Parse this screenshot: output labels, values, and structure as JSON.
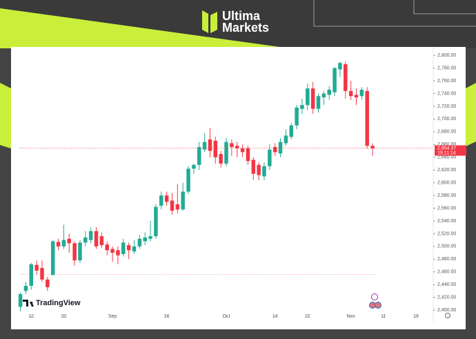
{
  "header": {
    "brand_line1": "Ultima",
    "brand_line2": "Markets"
  },
  "chart_data": {
    "type": "candlestick",
    "open": [
      2405,
      2430,
      2438,
      2471,
      2466,
      2448,
      2455,
      2507,
      2500,
      2512,
      2505,
      2478,
      2506,
      2510,
      2524,
      2516,
      2503,
      2496,
      2494,
      2488,
      2502,
      2492,
      2500,
      2508,
      2512,
      2516,
      2564,
      2580,
      2572,
      2566,
      2558,
      2586,
      2622,
      2628,
      2652,
      2668,
      2666,
      2645,
      2630,
      2662,
      2658,
      2654,
      2654,
      2636,
      2628,
      2610,
      2626,
      2656,
      2646,
      2662,
      2672,
      2690,
      2716,
      2722,
      2748,
      2716,
      2734,
      2738,
      2742,
      2778,
      2786,
      2744,
      2738,
      2736,
      2744,
      2658
    ],
    "high": [
      2428,
      2444,
      2474,
      2478,
      2478,
      2452,
      2510,
      2512,
      2534,
      2520,
      2508,
      2510,
      2524,
      2530,
      2530,
      2522,
      2508,
      2500,
      2500,
      2512,
      2506,
      2510,
      2518,
      2522,
      2540,
      2566,
      2586,
      2586,
      2584,
      2598,
      2600,
      2626,
      2630,
      2664,
      2678,
      2686,
      2672,
      2650,
      2670,
      2668,
      2664,
      2660,
      2658,
      2640,
      2632,
      2632,
      2660,
      2662,
      2670,
      2684,
      2694,
      2722,
      2732,
      2756,
      2758,
      2740,
      2744,
      2752,
      2782,
      2790,
      2790,
      2760,
      2748,
      2750,
      2750,
      2662
    ],
    "low": [
      2398,
      2425,
      2432,
      2456,
      2444,
      2430,
      2455,
      2494,
      2496,
      2490,
      2470,
      2474,
      2500,
      2505,
      2496,
      2498,
      2486,
      2476,
      2472,
      2484,
      2480,
      2488,
      2496,
      2502,
      2508,
      2512,
      2558,
      2564,
      2550,
      2552,
      2556,
      2582,
      2614,
      2620,
      2648,
      2640,
      2630,
      2624,
      2626,
      2642,
      2640,
      2640,
      2628,
      2604,
      2604,
      2604,
      2620,
      2642,
      2640,
      2658,
      2668,
      2684,
      2708,
      2714,
      2708,
      2710,
      2722,
      2730,
      2736,
      2766,
      2732,
      2730,
      2722,
      2730,
      2654,
      2642
    ],
    "close": [
      2425,
      2438,
      2472,
      2462,
      2448,
      2436,
      2508,
      2500,
      2510,
      2505,
      2478,
      2506,
      2514,
      2524,
      2500,
      2502,
      2494,
      2490,
      2486,
      2506,
      2494,
      2500,
      2512,
      2514,
      2516,
      2562,
      2580,
      2570,
      2556,
      2558,
      2586,
      2622,
      2628,
      2656,
      2664,
      2650,
      2640,
      2630,
      2664,
      2656,
      2654,
      2648,
      2634,
      2614,
      2612,
      2626,
      2652,
      2648,
      2664,
      2674,
      2690,
      2718,
      2722,
      2748,
      2716,
      2736,
      2740,
      2746,
      2780,
      2788,
      2744,
      2736,
      2734,
      2746,
      2658,
      2654
    ],
    "up_color": "#22ab94",
    "down_color": "#f23645",
    "xlim": [
      -1.22,
      76.2
    ],
    "xticks": [
      {
        "value": 2,
        "label": "12"
      },
      {
        "value": 8,
        "label": "20"
      },
      {
        "value": 17,
        "label": "Sep"
      },
      {
        "value": 27,
        "label": "16"
      },
      {
        "value": 38,
        "label": "Oct"
      },
      {
        "value": 47,
        "label": "14"
      },
      {
        "value": 53,
        "label": "22"
      },
      {
        "value": 61,
        "label": "Nov"
      },
      {
        "value": 67,
        "label": "11"
      },
      {
        "value": 73,
        "label": "19"
      }
    ],
    "ylim": [
      2392,
      2811
    ],
    "yticks": [
      {
        "value": 2400,
        "label": "2,400.00"
      },
      {
        "value": 2420,
        "label": "2,420.00"
      },
      {
        "value": 2440,
        "label": "2,440.00"
      },
      {
        "value": 2460,
        "label": "2,460.00"
      },
      {
        "value": 2480,
        "label": "2,480.00"
      },
      {
        "value": 2500,
        "label": "2,500.00"
      },
      {
        "value": 2520,
        "label": "2,520.00"
      },
      {
        "value": 2540,
        "label": "2,540.00"
      },
      {
        "value": 2560,
        "label": "2,560.00"
      },
      {
        "value": 2580,
        "label": "2,580.00"
      },
      {
        "value": 2600,
        "label": "2,600.00"
      },
      {
        "value": 2620,
        "label": "2,620.00"
      },
      {
        "value": 2640,
        "label": "2,640.00"
      },
      {
        "value": 2660,
        "label": "2,660.00"
      },
      {
        "value": 2680,
        "label": "2,680.00"
      },
      {
        "value": 2700,
        "label": "2,700.00"
      },
      {
        "value": 2720,
        "label": "2,720.00"
      },
      {
        "value": 2740,
        "label": "2,740.00"
      },
      {
        "value": 2760,
        "label": "2,760.00"
      },
      {
        "value": 2780,
        "label": "2,780.00"
      },
      {
        "value": 2800,
        "label": "2,800.00"
      }
    ],
    "last_price": {
      "value": 2654.37,
      "label": "2,654.37"
    },
    "countdown": "19:11:14",
    "reference_line": 2456,
    "watermark": "TradingView"
  }
}
